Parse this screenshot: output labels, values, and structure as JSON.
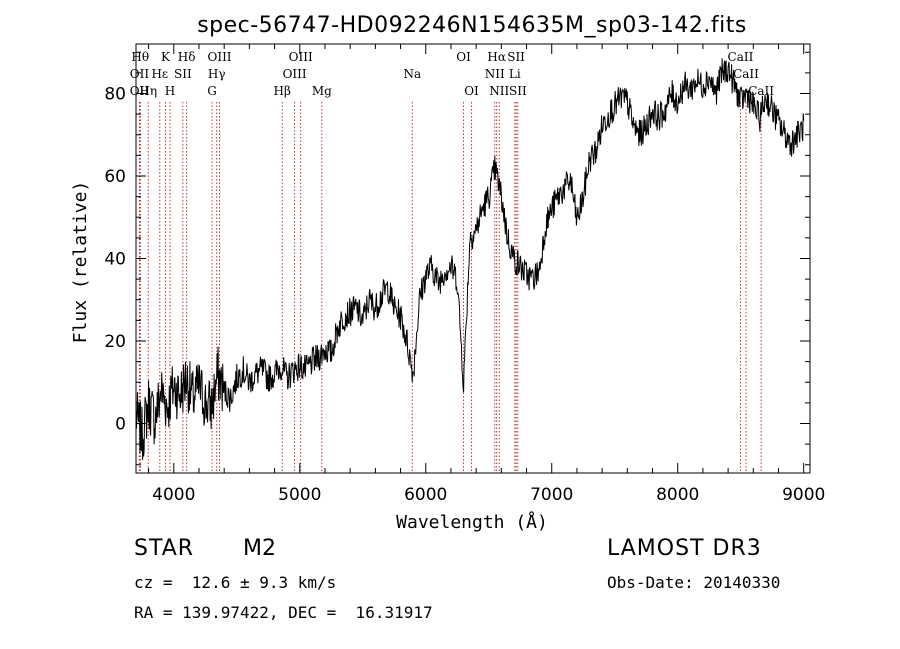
{
  "chart_data": {
    "type": "line",
    "title": "spec-56747-HD092246N154635M_sp03-142.fits",
    "xlabel": "Wavelength (Å)",
    "ylabel": "Flux (relative)",
    "xlim": [
      3700,
      9050
    ],
    "ylim": [
      -12,
      92
    ],
    "xticks": [
      4000,
      5000,
      6000,
      7000,
      8000,
      9000
    ],
    "yticks": [
      0,
      20,
      40,
      60,
      80
    ],
    "grid": false,
    "series": [
      {
        "x": [
          3700,
          3750,
          3800,
          3850,
          3900,
          3950,
          4000,
          4050,
          4100,
          4150,
          4200,
          4250,
          4300,
          4350,
          4400,
          4450,
          4500,
          4550,
          4600,
          4650,
          4700,
          4750,
          4800,
          4850,
          4900,
          4950,
          5000,
          5050,
          5100,
          5150,
          5200,
          5250,
          5300,
          5350,
          5400,
          5450,
          5500,
          5550,
          5600,
          5650,
          5700,
          5750,
          5800,
          5850,
          5900,
          5950,
          6000,
          6050,
          6100,
          6150,
          6200,
          6250,
          6300,
          6350,
          6400,
          6450,
          6500,
          6550,
          6600,
          6650,
          6700,
          6750,
          6800,
          6850,
          6900,
          6950,
          7000,
          7050,
          7100,
          7150,
          7200,
          7250,
          7300,
          7350,
          7400,
          7450,
          7500,
          7550,
          7600,
          7650,
          7700,
          7750,
          7800,
          7850,
          7900,
          7950,
          8000,
          8050,
          8100,
          8150,
          8200,
          8250,
          8300,
          8350,
          8400,
          8450,
          8500,
          8550,
          8600,
          8650,
          8700,
          8750,
          8800,
          8850,
          8900,
          8950,
          9000
        ],
        "y": [
          2,
          -3,
          5,
          1,
          8,
          4,
          9,
          7,
          11,
          6,
          9,
          5,
          4,
          12,
          8,
          6,
          11,
          13,
          10,
          12,
          13,
          11,
          12,
          14,
          11,
          13,
          14,
          13,
          15,
          16,
          18,
          17,
          23,
          26,
          27,
          28,
          25,
          30,
          28,
          31,
          33,
          28,
          26,
          20,
          12,
          30,
          36,
          38,
          34,
          37,
          38,
          35,
          10,
          45,
          47,
          52,
          55,
          62,
          55,
          45,
          40,
          38,
          36,
          35,
          37,
          48,
          52,
          55,
          57,
          59,
          49,
          55,
          64,
          66,
          72,
          75,
          77,
          79,
          78,
          72,
          70,
          72,
          76,
          74,
          76,
          80,
          78,
          82,
          81,
          83,
          82,
          84,
          80,
          85,
          86,
          82,
          78,
          80,
          77,
          74,
          79,
          76,
          73,
          70,
          68,
          70,
          72
        ]
      }
    ],
    "lines": [
      {
        "x": 3734,
        "label": "Hθ",
        "row": 1
      },
      {
        "x": 3727,
        "label": "OII",
        "row": 2
      },
      {
        "x": 3727,
        "label": "OII",
        "row": 3
      },
      {
        "x": 3797,
        "label": "Hη",
        "row": 3
      },
      {
        "x": 3889,
        "label": "Hε",
        "row": 2
      },
      {
        "x": 3934,
        "label": "K",
        "row": 1
      },
      {
        "x": 3970,
        "label": "H",
        "row": 3
      },
      {
        "x": 4072,
        "label": "SII",
        "row": 2
      },
      {
        "x": 4102,
        "label": "Hδ",
        "row": 1
      },
      {
        "x": 4304,
        "label": "G",
        "row": 3
      },
      {
        "x": 4341,
        "label": "Hγ",
        "row": 2
      },
      {
        "x": 4363,
        "label": "OIII",
        "row": 1
      },
      {
        "x": 4861,
        "label": "Hβ",
        "row": 3
      },
      {
        "x": 4959,
        "label": "OIII",
        "row": 2
      },
      {
        "x": 5007,
        "label": "OIII",
        "row": 1
      },
      {
        "x": 5175,
        "label": "Mg",
        "row": 3
      },
      {
        "x": 5893,
        "label": "Na",
        "row": 2
      },
      {
        "x": 6300,
        "label": "OI",
        "row": 1
      },
      {
        "x": 6363,
        "label": "OI",
        "row": 3
      },
      {
        "x": 6548,
        "label": "NII",
        "row": 2
      },
      {
        "x": 6563,
        "label": "Hα",
        "row": 1
      },
      {
        "x": 6583,
        "label": "NII",
        "row": 3
      },
      {
        "x": 6707,
        "label": "Li",
        "row": 2
      },
      {
        "x": 6717,
        "label": "SII",
        "row": 1
      },
      {
        "x": 6731,
        "label": "SII",
        "row": 3
      },
      {
        "x": 8498,
        "label": "CaII",
        "row": 1
      },
      {
        "x": 8542,
        "label": "CaII",
        "row": 2
      },
      {
        "x": 8662,
        "label": "CaII",
        "row": 3
      }
    ],
    "line_color": "#000000",
    "marker_color": "#b22222"
  },
  "info": {
    "object_type": "STAR",
    "subclass": "M2",
    "redshift": "cz =  12.6 ± 9.3 km/s",
    "coords": "RA = 139.97422, DEC =  16.31917",
    "survey": "LAMOST DR3",
    "obs_date": "Obs-Date: 20140330"
  }
}
